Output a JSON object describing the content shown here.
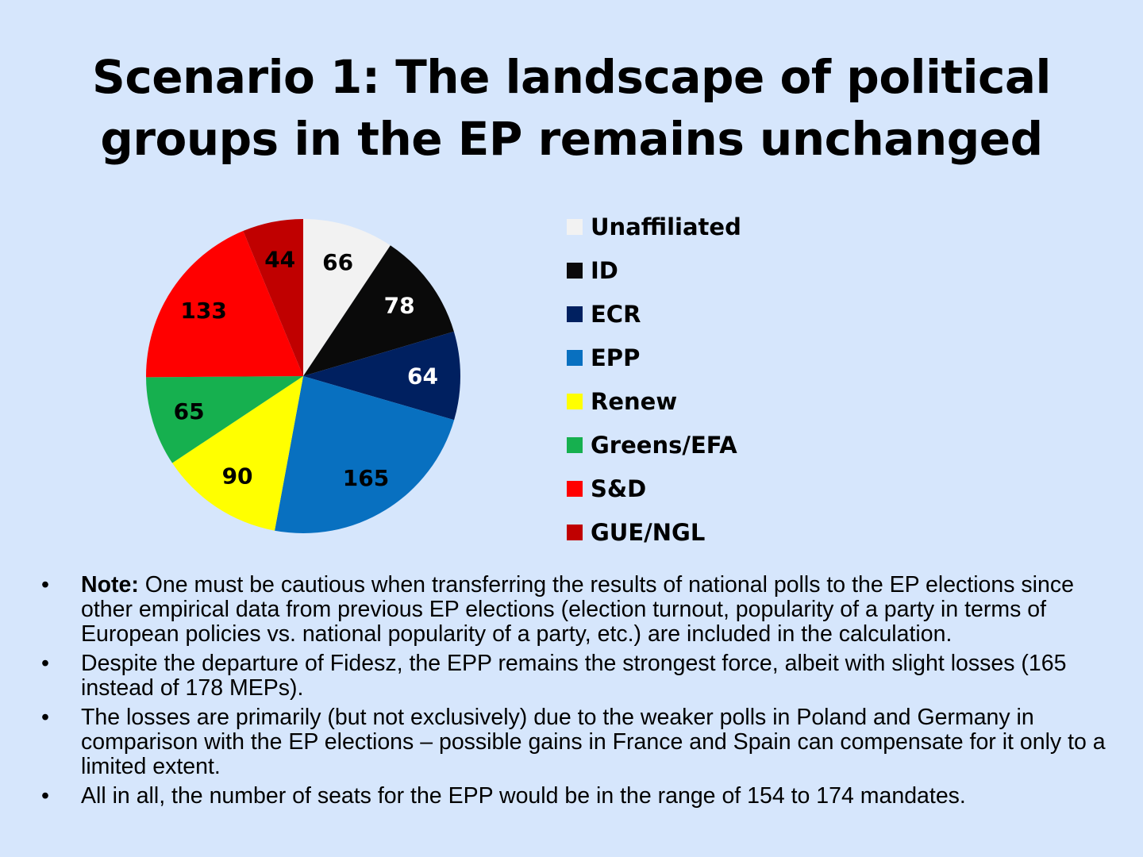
{
  "title": {
    "line1": "Scenario 1: The landscape of political",
    "line2": "groups in the EP remains unchanged"
  },
  "chart_data": {
    "type": "pie",
    "title": "Scenario 1: The landscape of political groups in the EP remains unchanged",
    "start": "top, clockwise",
    "legend_placement": "right",
    "slices": [
      {
        "label": "Unaffiliated",
        "value": 66,
        "color": "#f2f2f2",
        "text_color": "#000000"
      },
      {
        "label": "ID",
        "value": 78,
        "color": "#0a0a0a",
        "text_color": "#ffffff"
      },
      {
        "label": "ECR",
        "value": 64,
        "color": "#002060",
        "text_color": "#ffffff"
      },
      {
        "label": "EPP",
        "value": 165,
        "color": "#0870c0",
        "text_color": "#000000"
      },
      {
        "label": "Renew",
        "value": 90,
        "color": "#ffff00",
        "text_color": "#000000"
      },
      {
        "label": "Greens/EFA",
        "value": 65,
        "color": "#16b04f",
        "text_color": "#000000"
      },
      {
        "label": "S&D",
        "value": 133,
        "color": "#ff0000",
        "text_color": "#000000"
      },
      {
        "label": "GUE/NGL",
        "value": 44,
        "color": "#c00000",
        "text_color": "#000000"
      }
    ]
  },
  "notes": {
    "n1_bold": "Note:",
    "n1": " One must be cautious when transferring the results of national polls to the EP elections since other empirical data from previous EP elections (election turnout, popularity of a party in terms of European policies vs. national popularity of a party, etc.) are included in the calculation.",
    "n2": "Despite the departure of Fidesz, the EPP remains the strongest force, albeit with slight losses (165 instead of 178 MEPs).",
    "n3": "The losses are primarily (but not exclusively) due to the weaker polls in Poland and Germany in comparison with the EP elections – possible gains in France and Spain can compensate for it only to a limited extent.",
    "n4": "All in all, the number of seats for the EPP would be in the range of 154 to 174 mandates.",
    "bullet": "•"
  }
}
